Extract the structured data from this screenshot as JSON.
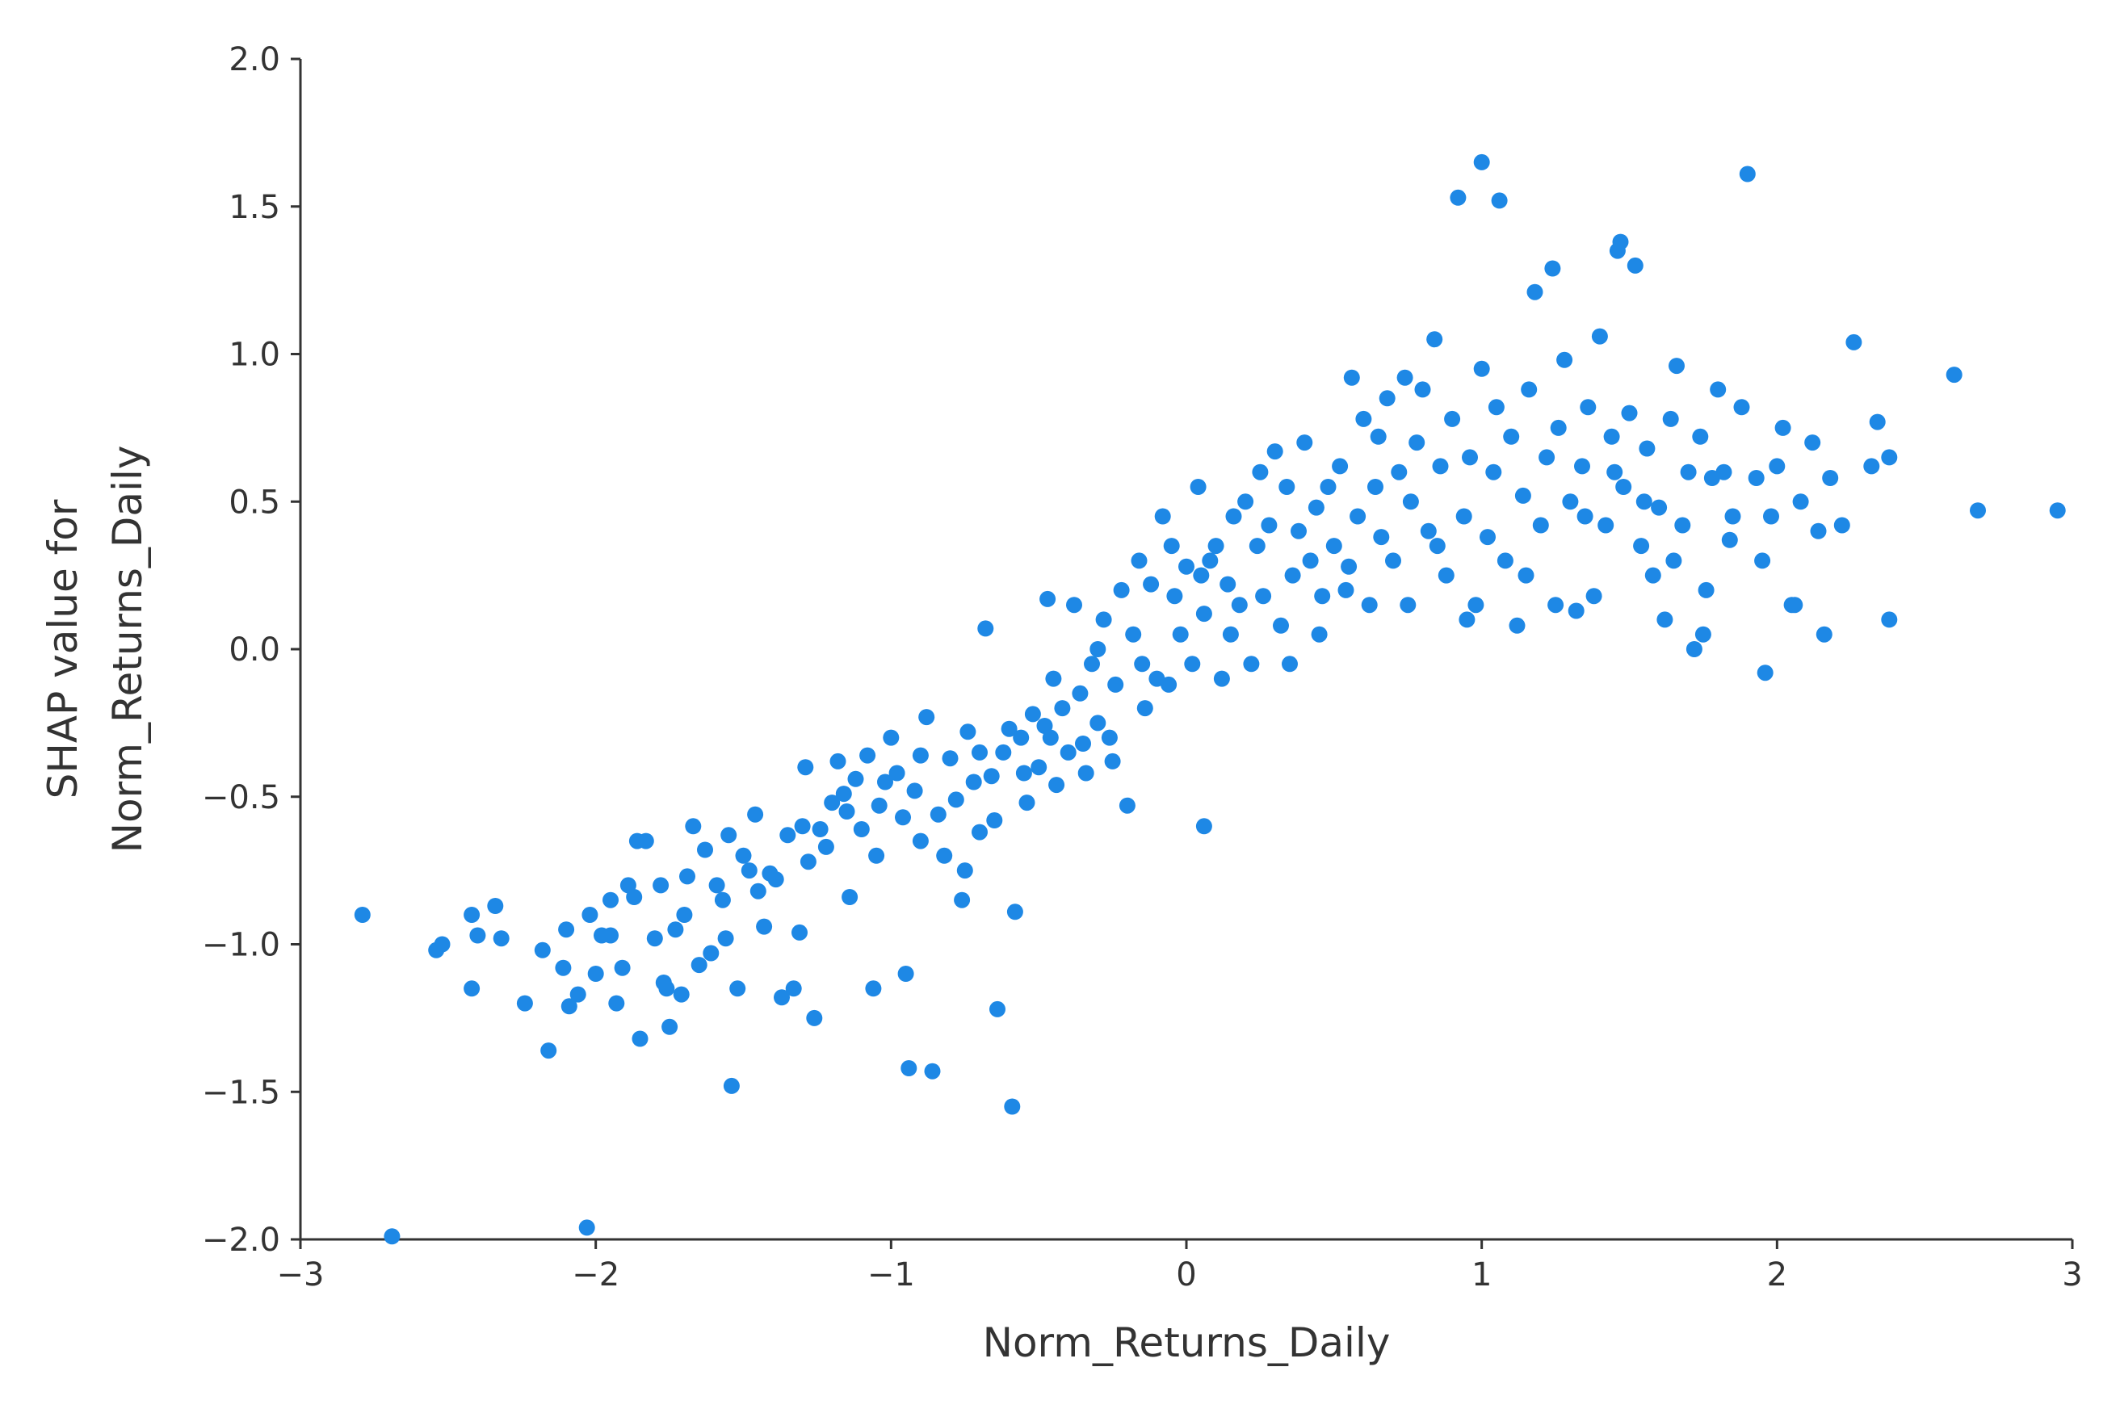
{
  "chart_data": {
    "type": "scatter",
    "title": "",
    "xlabel": "Norm_Returns_Daily",
    "ylabel_lines": [
      "SHAP value for",
      "Norm_Returns_Daily"
    ],
    "xlim": [
      -3,
      3
    ],
    "ylim": [
      -2,
      2
    ],
    "x_ticks": [
      -3,
      -2,
      -1,
      0,
      1,
      2,
      3
    ],
    "x_tick_labels": [
      "−3",
      "−2",
      "−1",
      "0",
      "1",
      "2",
      "3"
    ],
    "y_ticks": [
      -2,
      -1.5,
      -1,
      -0.5,
      0,
      0.5,
      1,
      1.5,
      2
    ],
    "y_tick_labels": [
      "−2.0",
      "−1.5",
      "−1.0",
      "−0.5",
      "0.0",
      "0.5",
      "1.0",
      "1.5",
      "2.0"
    ],
    "grid": false,
    "point_color": "#1E88E5",
    "series": [
      {
        "points": [
          [
            -2.79,
            -0.9
          ],
          [
            -2.69,
            -1.99
          ],
          [
            -2.54,
            -1.02
          ],
          [
            -2.52,
            -1.0
          ],
          [
            -2.42,
            -1.15
          ],
          [
            -2.42,
            -0.9
          ],
          [
            -2.4,
            -0.97
          ],
          [
            -2.34,
            -0.87
          ],
          [
            -2.32,
            -0.98
          ],
          [
            -2.24,
            -1.2
          ],
          [
            -2.18,
            -1.02
          ],
          [
            -2.16,
            -1.36
          ],
          [
            -2.11,
            -1.08
          ],
          [
            -2.1,
            -0.95
          ],
          [
            -2.09,
            -1.21
          ],
          [
            -2.06,
            -1.17
          ],
          [
            -2.03,
            -1.96
          ],
          [
            -2.02,
            -0.9
          ],
          [
            -2.0,
            -1.1
          ],
          [
            -1.98,
            -0.97
          ],
          [
            -1.95,
            -0.97
          ],
          [
            -1.93,
            -1.2
          ],
          [
            -1.91,
            -1.08
          ],
          [
            -1.89,
            -0.8
          ],
          [
            -1.87,
            -0.84
          ],
          [
            -1.86,
            -0.65
          ],
          [
            -1.85,
            -1.32
          ],
          [
            -1.83,
            -0.65
          ],
          [
            -1.8,
            -0.98
          ],
          [
            -1.78,
            -0.8
          ],
          [
            -1.77,
            -1.13
          ],
          [
            -1.76,
            -1.15
          ],
          [
            -1.75,
            -1.28
          ],
          [
            -1.73,
            -0.95
          ],
          [
            -1.71,
            -1.17
          ],
          [
            -1.69,
            -0.77
          ],
          [
            -1.67,
            -0.6
          ],
          [
            -1.65,
            -1.07
          ],
          [
            -1.63,
            -0.68
          ],
          [
            -1.61,
            -1.03
          ],
          [
            -1.59,
            -0.8
          ],
          [
            -1.57,
            -0.85
          ],
          [
            -1.56,
            -0.98
          ],
          [
            -1.55,
            -0.63
          ],
          [
            -1.54,
            -1.48
          ],
          [
            -1.52,
            -1.15
          ],
          [
            -1.5,
            -0.7
          ],
          [
            -1.48,
            -0.75
          ],
          [
            -1.46,
            -0.56
          ],
          [
            -1.43,
            -0.94
          ],
          [
            -1.41,
            -0.76
          ],
          [
            -1.39,
            -0.78
          ],
          [
            -1.37,
            -1.18
          ],
          [
            -1.35,
            -0.63
          ],
          [
            -1.33,
            -1.15
          ],
          [
            -1.31,
            -0.96
          ],
          [
            -1.29,
            -0.4
          ],
          [
            -1.28,
            -0.72
          ],
          [
            -1.26,
            -1.25
          ],
          [
            -1.24,
            -0.61
          ],
          [
            -1.22,
            -0.67
          ],
          [
            -1.2,
            -0.52
          ],
          [
            -1.18,
            -0.38
          ],
          [
            -1.16,
            -0.49
          ],
          [
            -1.14,
            -0.84
          ],
          [
            -1.12,
            -0.44
          ],
          [
            -1.1,
            -0.61
          ],
          [
            -1.08,
            -0.36
          ],
          [
            -1.06,
            -1.15
          ],
          [
            -1.04,
            -0.53
          ],
          [
            -1.02,
            -0.45
          ],
          [
            -1.0,
            -0.3
          ],
          [
            -0.98,
            -0.42
          ],
          [
            -0.96,
            -0.57
          ],
          [
            -0.95,
            -1.1
          ],
          [
            -0.94,
            -1.42
          ],
          [
            -0.92,
            -0.48
          ],
          [
            -0.9,
            -0.36
          ],
          [
            -0.88,
            -0.23
          ],
          [
            -0.86,
            -1.43
          ],
          [
            -0.84,
            -0.56
          ],
          [
            -0.82,
            -0.7
          ],
          [
            -0.8,
            -0.37
          ],
          [
            -0.78,
            -0.51
          ],
          [
            -0.76,
            -0.85
          ],
          [
            -0.74,
            -0.28
          ],
          [
            -0.72,
            -0.45
          ],
          [
            -0.7,
            -0.62
          ],
          [
            -0.68,
            0.07
          ],
          [
            -0.66,
            -0.43
          ],
          [
            -0.64,
            -1.22
          ],
          [
            -0.62,
            -0.35
          ],
          [
            -0.6,
            -0.27
          ],
          [
            -0.59,
            -1.55
          ],
          [
            -0.58,
            -0.89
          ],
          [
            -0.56,
            -0.3
          ],
          [
            -0.54,
            -0.52
          ],
          [
            -0.52,
            -0.22
          ],
          [
            -0.5,
            -0.4
          ],
          [
            -0.48,
            -0.26
          ],
          [
            -0.47,
            0.17
          ],
          [
            -0.46,
            -0.3
          ],
          [
            -0.44,
            -0.46
          ],
          [
            -0.42,
            -0.2
          ],
          [
            -0.4,
            -0.35
          ],
          [
            -0.38,
            0.15
          ],
          [
            -0.36,
            -0.15
          ],
          [
            -0.34,
            -0.42
          ],
          [
            -0.32,
            -0.05
          ],
          [
            -0.3,
            -0.25
          ],
          [
            -0.28,
            0.1
          ],
          [
            -0.26,
            -0.3
          ],
          [
            -0.24,
            -0.12
          ],
          [
            -0.22,
            0.2
          ],
          [
            -0.2,
            -0.53
          ],
          [
            -0.18,
            0.05
          ],
          [
            -0.16,
            0.3
          ],
          [
            -0.14,
            -0.2
          ],
          [
            -0.12,
            0.22
          ],
          [
            -0.1,
            -0.1
          ],
          [
            -0.08,
            0.45
          ],
          [
            -0.06,
            -0.12
          ],
          [
            -0.04,
            0.18
          ],
          [
            -0.02,
            0.05
          ],
          [
            0.0,
            0.28
          ],
          [
            0.02,
            -0.05
          ],
          [
            0.04,
            0.55
          ],
          [
            0.06,
            0.12
          ],
          [
            0.06,
            -0.6
          ],
          [
            0.08,
            0.3
          ],
          [
            0.1,
            0.35
          ],
          [
            0.12,
            -0.1
          ],
          [
            0.14,
            0.22
          ],
          [
            0.16,
            0.45
          ],
          [
            0.18,
            0.15
          ],
          [
            0.2,
            0.5
          ],
          [
            0.22,
            -0.05
          ],
          [
            0.24,
            0.35
          ],
          [
            0.26,
            0.18
          ],
          [
            0.28,
            0.42
          ],
          [
            0.3,
            0.67
          ],
          [
            0.32,
            0.08
          ],
          [
            0.34,
            0.55
          ],
          [
            0.36,
            0.25
          ],
          [
            0.38,
            0.4
          ],
          [
            0.4,
            0.7
          ],
          [
            0.42,
            0.3
          ],
          [
            0.44,
            0.48
          ],
          [
            0.46,
            0.18
          ],
          [
            0.48,
            0.55
          ],
          [
            0.5,
            0.35
          ],
          [
            0.52,
            0.62
          ],
          [
            0.54,
            0.2
          ],
          [
            0.56,
            0.92
          ],
          [
            0.58,
            0.45
          ],
          [
            0.6,
            0.78
          ],
          [
            0.62,
            0.15
          ],
          [
            0.64,
            0.55
          ],
          [
            0.66,
            0.38
          ],
          [
            0.68,
            0.85
          ],
          [
            0.7,
            0.3
          ],
          [
            0.72,
            0.6
          ],
          [
            0.74,
            0.92
          ],
          [
            0.76,
            0.5
          ],
          [
            0.78,
            0.7
          ],
          [
            0.8,
            0.88
          ],
          [
            0.82,
            0.4
          ],
          [
            0.84,
            1.05
          ],
          [
            0.86,
            0.62
          ],
          [
            0.88,
            0.25
          ],
          [
            0.9,
            0.78
          ],
          [
            0.92,
            1.53
          ],
          [
            0.94,
            0.45
          ],
          [
            0.96,
            0.65
          ],
          [
            0.98,
            0.15
          ],
          [
            1.0,
            0.95
          ],
          [
            1.0,
            1.65
          ],
          [
            1.02,
            0.38
          ],
          [
            1.04,
            0.6
          ],
          [
            1.06,
            1.52
          ],
          [
            1.08,
            0.3
          ],
          [
            1.1,
            0.72
          ],
          [
            1.12,
            0.08
          ],
          [
            1.14,
            0.52
          ],
          [
            1.16,
            0.88
          ],
          [
            1.18,
            1.21
          ],
          [
            1.2,
            0.42
          ],
          [
            1.22,
            0.65
          ],
          [
            1.24,
            1.29
          ],
          [
            1.26,
            0.75
          ],
          [
            1.28,
            0.98
          ],
          [
            1.3,
            0.5
          ],
          [
            1.32,
            0.13
          ],
          [
            1.34,
            0.62
          ],
          [
            1.36,
            0.82
          ],
          [
            1.38,
            0.18
          ],
          [
            1.4,
            1.06
          ],
          [
            1.42,
            0.42
          ],
          [
            1.44,
            0.72
          ],
          [
            1.46,
            1.35
          ],
          [
            1.47,
            1.38
          ],
          [
            1.48,
            0.55
          ],
          [
            1.5,
            0.8
          ],
          [
            1.52,
            1.3
          ],
          [
            1.54,
            0.35
          ],
          [
            1.56,
            0.68
          ],
          [
            1.58,
            0.25
          ],
          [
            1.6,
            0.48
          ],
          [
            1.62,
            0.1
          ],
          [
            1.64,
            0.78
          ],
          [
            1.66,
            0.96
          ],
          [
            1.68,
            0.42
          ],
          [
            1.7,
            0.6
          ],
          [
            1.72,
            0.0
          ],
          [
            1.74,
            0.72
          ],
          [
            1.76,
            0.2
          ],
          [
            1.78,
            0.58
          ],
          [
            1.8,
            0.88
          ],
          [
            1.82,
            0.6
          ],
          [
            1.84,
            0.37
          ],
          [
            1.88,
            0.82
          ],
          [
            1.9,
            1.61
          ],
          [
            1.93,
            0.58
          ],
          [
            1.96,
            -0.08
          ],
          [
            1.98,
            0.45
          ],
          [
            2.0,
            0.62
          ],
          [
            2.02,
            0.75
          ],
          [
            2.06,
            0.15
          ],
          [
            2.08,
            0.5
          ],
          [
            2.12,
            0.7
          ],
          [
            2.14,
            0.4
          ],
          [
            2.16,
            0.05
          ],
          [
            2.18,
            0.58
          ],
          [
            2.22,
            0.42
          ],
          [
            2.26,
            1.04
          ],
          [
            2.32,
            0.62
          ],
          [
            2.34,
            0.77
          ],
          [
            2.38,
            0.65
          ],
          [
            2.38,
            0.1
          ],
          [
            2.6,
            0.93
          ],
          [
            2.68,
            0.47
          ],
          [
            2.95,
            0.47
          ],
          [
            -1.95,
            -0.85
          ],
          [
            -1.7,
            -0.9
          ],
          [
            -1.45,
            -0.82
          ],
          [
            -1.3,
            -0.6
          ],
          [
            -1.15,
            -0.55
          ],
          [
            -1.05,
            -0.7
          ],
          [
            -0.9,
            -0.65
          ],
          [
            -0.75,
            -0.75
          ],
          [
            -0.7,
            -0.35
          ],
          [
            -0.65,
            -0.58
          ],
          [
            -0.55,
            -0.42
          ],
          [
            -0.45,
            -0.1
          ],
          [
            -0.35,
            -0.32
          ],
          [
            -0.3,
            0.0
          ],
          [
            -0.25,
            -0.38
          ],
          [
            -0.15,
            -0.05
          ],
          [
            -0.05,
            0.35
          ],
          [
            0.05,
            0.25
          ],
          [
            0.15,
            0.05
          ],
          [
            0.25,
            0.6
          ],
          [
            0.35,
            -0.05
          ],
          [
            0.45,
            0.05
          ],
          [
            0.55,
            0.28
          ],
          [
            0.65,
            0.72
          ],
          [
            0.75,
            0.15
          ],
          [
            0.85,
            0.35
          ],
          [
            0.95,
            0.1
          ],
          [
            1.05,
            0.82
          ],
          [
            1.15,
            0.25
          ],
          [
            1.25,
            0.15
          ],
          [
            1.35,
            0.45
          ],
          [
            1.45,
            0.6
          ],
          [
            1.55,
            0.5
          ],
          [
            1.65,
            0.3
          ],
          [
            1.75,
            0.05
          ],
          [
            1.85,
            0.45
          ],
          [
            1.95,
            0.3
          ],
          [
            2.05,
            0.15
          ]
        ]
      }
    ]
  }
}
